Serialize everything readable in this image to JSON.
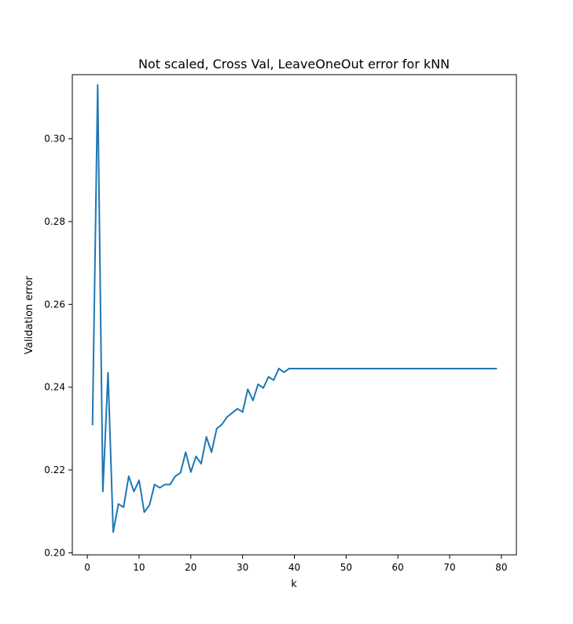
{
  "chart_data": {
    "type": "line",
    "title": "Not scaled, Cross Val, LeaveOneOut error for kNN",
    "xlabel": "k",
    "ylabel": "Validation error",
    "xlim": [
      -2.9,
      82.9
    ],
    "ylim": [
      0.1995,
      0.3155
    ],
    "xticks": [
      0,
      10,
      20,
      30,
      40,
      50,
      60,
      70,
      80
    ],
    "yticks": [
      0.2,
      0.22,
      0.24,
      0.26,
      0.28,
      0.3
    ],
    "ytick_labels": [
      "0.20",
      "0.22",
      "0.24",
      "0.26",
      "0.28",
      "0.30"
    ],
    "grid": false,
    "series": [
      {
        "color": "#1f77b4",
        "x": [
          1,
          2,
          3,
          4,
          5,
          6,
          7,
          8,
          9,
          10,
          11,
          12,
          13,
          14,
          15,
          16,
          17,
          18,
          19,
          20,
          21,
          22,
          23,
          24,
          25,
          26,
          27,
          28,
          29,
          30,
          31,
          32,
          33,
          34,
          35,
          36,
          37,
          38,
          39,
          40,
          41,
          42,
          43,
          44,
          45,
          46,
          47,
          48,
          49,
          50,
          51,
          52,
          53,
          54,
          55,
          56,
          57,
          58,
          59,
          60,
          61,
          62,
          63,
          64,
          65,
          66,
          67,
          68,
          69,
          70,
          71,
          72,
          73,
          74,
          75,
          76,
          77,
          78,
          79
        ],
        "y": [
          0.231,
          0.313,
          0.2148,
          0.2435,
          0.205,
          0.2118,
          0.211,
          0.2185,
          0.2148,
          0.2175,
          0.2098,
          0.2115,
          0.2165,
          0.2157,
          0.2165,
          0.2165,
          0.2185,
          0.2193,
          0.2243,
          0.2195,
          0.2233,
          0.2215,
          0.228,
          0.2243,
          0.23,
          0.231,
          0.2328,
          0.2338,
          0.2348,
          0.234,
          0.2395,
          0.2368,
          0.2407,
          0.2398,
          0.2425,
          0.2417,
          0.2445,
          0.2436,
          0.2445,
          0.2445,
          0.2445,
          0.2445,
          0.2445,
          0.2445,
          0.2445,
          0.2445,
          0.2445,
          0.2445,
          0.2445,
          0.2445,
          0.2445,
          0.2445,
          0.2445,
          0.2445,
          0.2445,
          0.2445,
          0.2445,
          0.2445,
          0.2445,
          0.2445,
          0.2445,
          0.2445,
          0.2445,
          0.2445,
          0.2445,
          0.2445,
          0.2445,
          0.2445,
          0.2445,
          0.2445,
          0.2445,
          0.2445,
          0.2445,
          0.2445,
          0.2445,
          0.2445,
          0.2445,
          0.2445,
          0.2445
        ]
      }
    ]
  }
}
